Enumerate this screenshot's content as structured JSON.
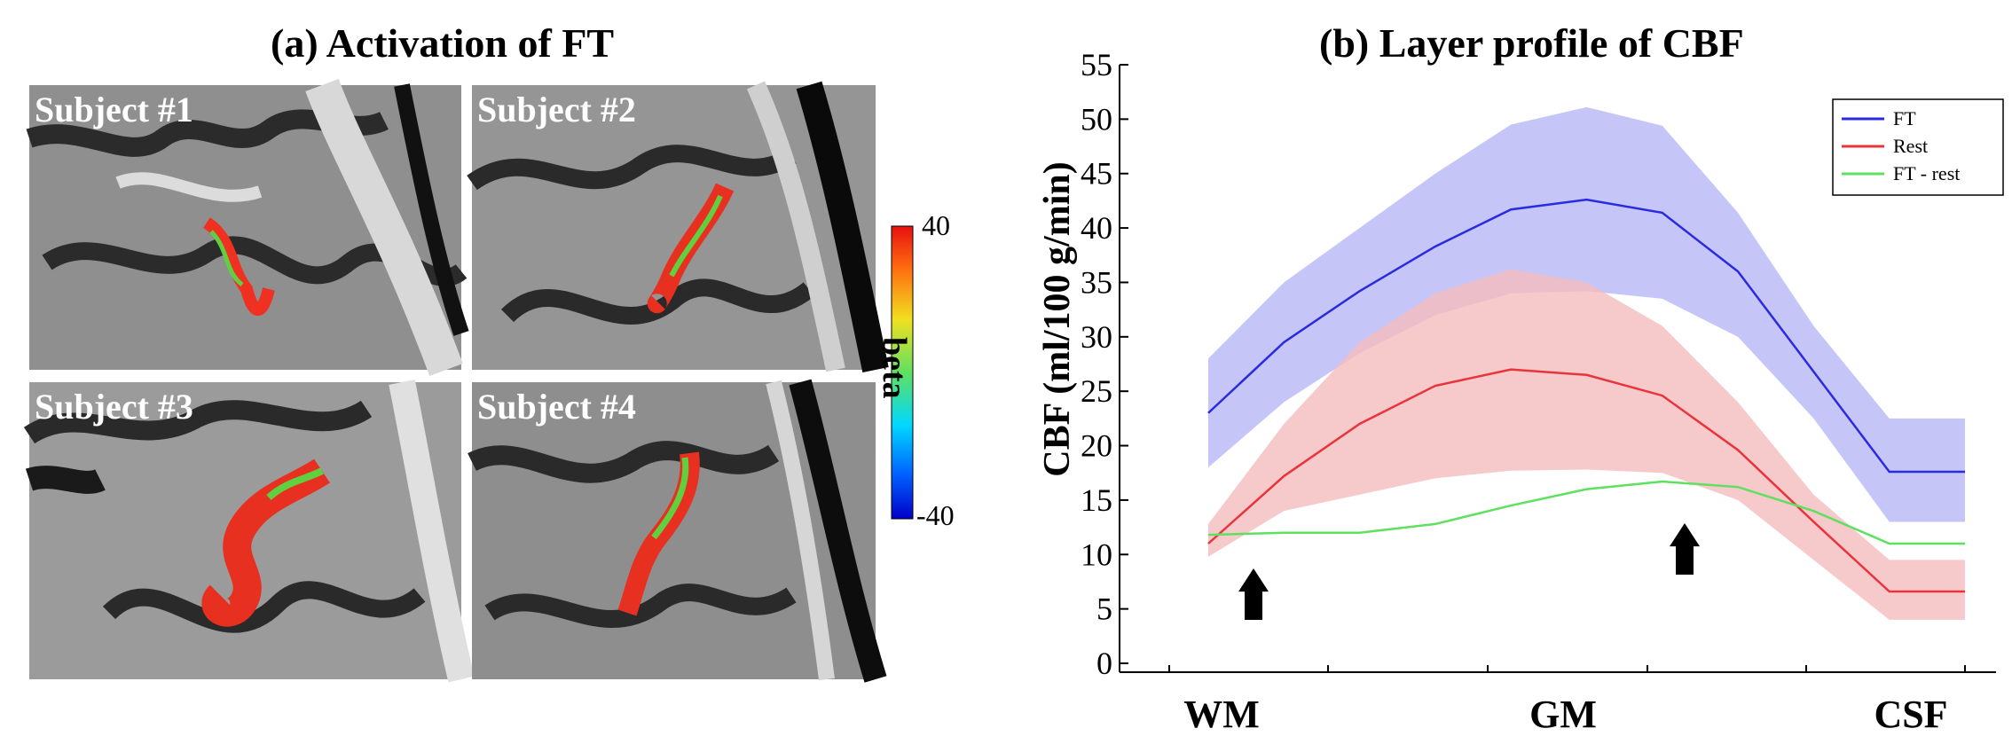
{
  "panel_a": {
    "title": "(a) Activation of FT",
    "subjects": [
      "Subject #1",
      "Subject #2",
      "Subject #3",
      "Subject #4"
    ],
    "colorbar": {
      "max_label": "40",
      "min_label": "-40",
      "title": "beta"
    }
  },
  "chart_data": {
    "type": "line",
    "title": "(b) Layer profile of CBF",
    "ylabel": "CBF (ml/100 g/min)",
    "xlabel": "",
    "ylim": [
      0,
      55
    ],
    "yticks": [
      "0",
      "5",
      "10",
      "15",
      "20",
      "25",
      "30",
      "35",
      "40",
      "45",
      "50",
      "55"
    ],
    "xcategory_labels": [
      "WM",
      "GM",
      "CSF"
    ],
    "x": [
      0,
      1,
      2,
      3,
      4,
      5,
      6,
      7,
      8,
      9,
      10
    ],
    "series": [
      {
        "name": "FT",
        "color": "#2a2ae0",
        "values": [
          23.0,
          29.5,
          34.2,
          38.3,
          41.7,
          42.6,
          41.4,
          36.0,
          26.8,
          17.6,
          17.6
        ],
        "upper": [
          28.0,
          35.0,
          40.0,
          45.0,
          49.5,
          51.1,
          49.4,
          41.4,
          31.0,
          22.5,
          22.5
        ],
        "lower": [
          18.0,
          24.0,
          28.5,
          32.0,
          34.0,
          34.2,
          33.5,
          30.0,
          22.5,
          13.0,
          13.0
        ],
        "band_color": "#b6b8f5"
      },
      {
        "name": "Rest",
        "color": "#e8343a",
        "values": [
          11.0,
          17.2,
          22.0,
          25.5,
          27.0,
          26.5,
          24.6,
          19.6,
          13.0,
          6.6,
          6.6
        ],
        "upper": [
          12.8,
          22.0,
          29.5,
          34.0,
          36.2,
          35.0,
          31.0,
          24.0,
          15.5,
          9.5,
          9.5
        ],
        "lower": [
          9.8,
          14.0,
          15.5,
          17.0,
          17.7,
          17.8,
          17.5,
          15.0,
          9.5,
          4.0,
          4.0
        ],
        "band_color": "#f4bcbe"
      },
      {
        "name": "FT - rest",
        "color": "#5fe060",
        "values": [
          11.8,
          12.0,
          12.0,
          12.8,
          14.5,
          16.0,
          16.7,
          16.2,
          14.0,
          11.0,
          11.0
        ]
      }
    ],
    "legend": {
      "position": "top-right",
      "entries": [
        "FT",
        "Rest",
        "FT - rest"
      ]
    },
    "annotations": [
      "arrow-up-near-WM",
      "arrow-up-near-GM"
    ]
  }
}
